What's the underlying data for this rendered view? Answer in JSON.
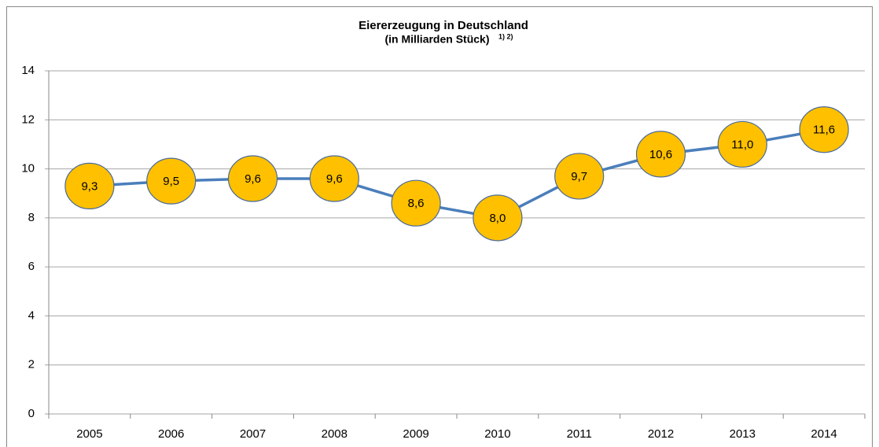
{
  "chart_data": {
    "type": "line",
    "title": "Eiererzeugung in Deutschland",
    "subtitle": "(in Milliarden Stück)",
    "title_note": "1) 2)",
    "categories": [
      "2005",
      "2006",
      "2007",
      "2008",
      "2009",
      "2010",
      "2011",
      "2012",
      "2013",
      "2014"
    ],
    "values": [
      9.3,
      9.5,
      9.6,
      9.6,
      8.6,
      8.0,
      9.7,
      10.6,
      11.0,
      11.6
    ],
    "value_labels": [
      "9,3",
      "9,5",
      "9,6",
      "9,6",
      "8,6",
      "8,0",
      "9,7",
      "10,6",
      "11,0",
      "11,6"
    ],
    "color": "#4a7ebb",
    "marker_color": "#ffc000",
    "ylim": [
      0,
      14
    ],
    "yticks": [
      0,
      2,
      4,
      6,
      8,
      10,
      12,
      14
    ],
    "grid": true
  }
}
